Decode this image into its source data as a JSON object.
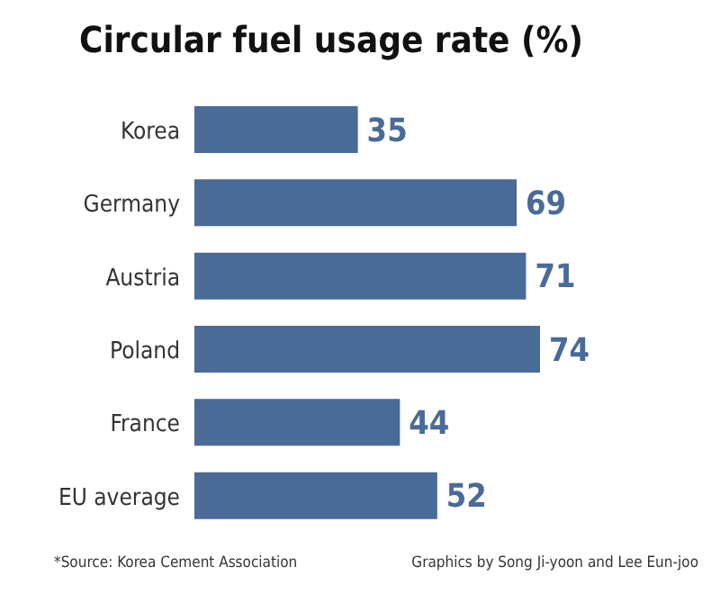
{
  "chart_data": {
    "type": "bar",
    "orientation": "horizontal",
    "title": "Circular fuel usage rate (%)",
    "categories": [
      "Korea",
      "Germany",
      "Austria",
      "Poland",
      "France",
      "EU average"
    ],
    "values": [
      35,
      69,
      71,
      74,
      44,
      52
    ],
    "color": "#4a6a97",
    "data_labels": true,
    "grid": false,
    "legend": false,
    "annotations": [
      "*Source: Korea Cement Association",
      "Graphics by Song Ji-yoon and Lee Eun-joo"
    ]
  }
}
